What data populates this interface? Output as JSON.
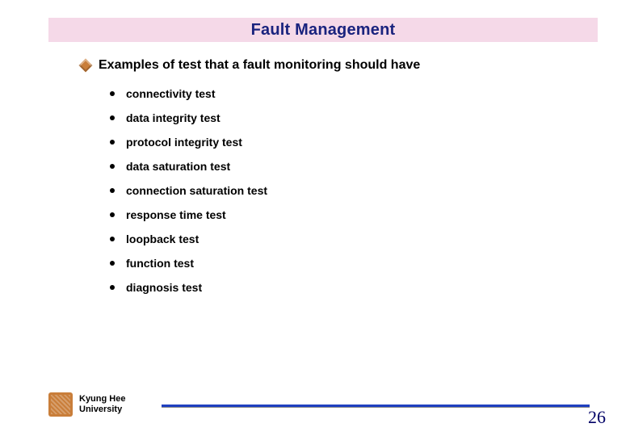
{
  "title": "Fault Management",
  "section_heading": "Examples of test that a fault monitoring should have",
  "items": [
    "connectivity test",
    "data integrity test",
    "protocol integrity test",
    "data saturation test",
    "connection saturation test",
    "response time test",
    "loopback test",
    "function test",
    "diagnosis test"
  ],
  "footer": {
    "institution_line1": "Kyung Hee",
    "institution_line2": "University"
  },
  "page_number": "26",
  "colors": {
    "title_band_bg": "#f5d9e8",
    "title_text": "#1a237e",
    "bullet_diamond": "#c97e3a",
    "footer_line": "#2040c0",
    "page_number": "#000066"
  }
}
